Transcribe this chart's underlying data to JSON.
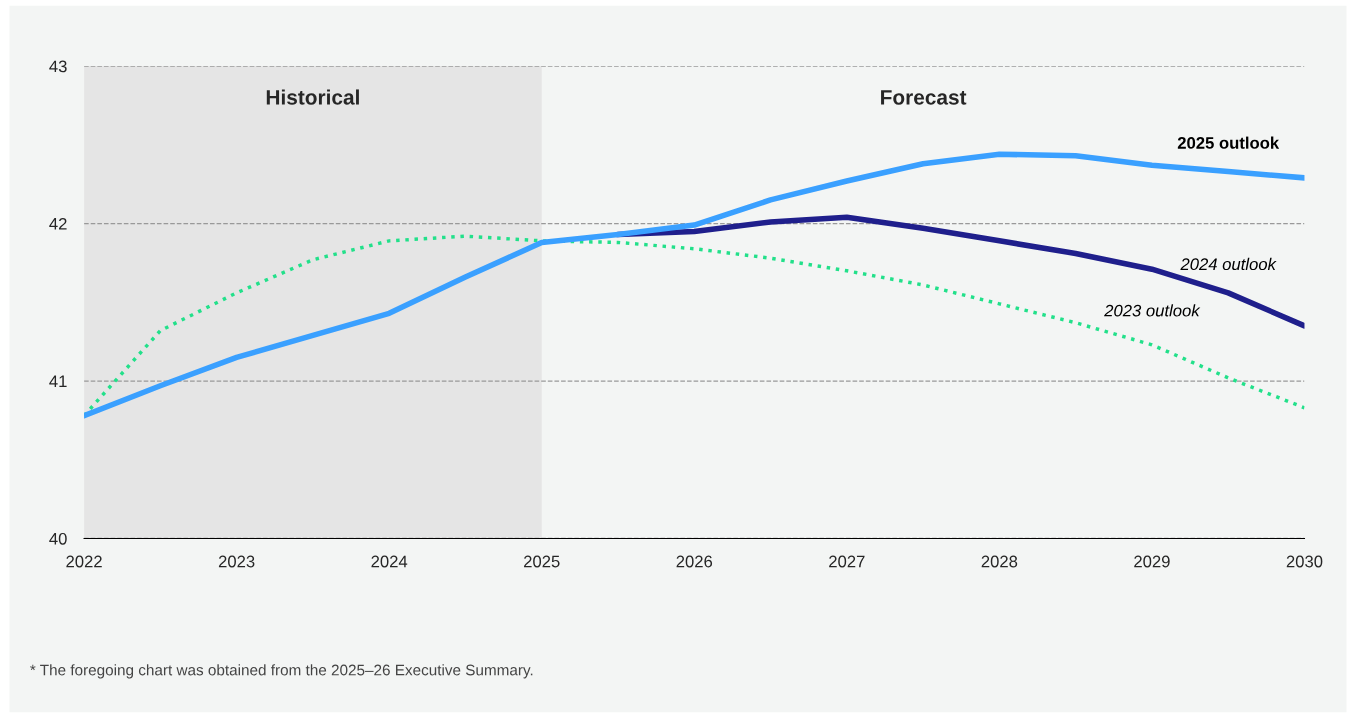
{
  "chart_data": {
    "type": "line",
    "x": [
      2022,
      2022.5,
      2023,
      2023.5,
      2024,
      2024.5,
      2025,
      2025.5,
      2026,
      2026.5,
      2027,
      2027.5,
      2028,
      2028.5,
      2029,
      2029.5,
      2030
    ],
    "series": [
      {
        "name": "2025 outlook",
        "color": "#3aa0ff",
        "line_style": "solid",
        "values": [
          40.78,
          40.97,
          41.15,
          41.29,
          41.43,
          41.66,
          41.88,
          41.93,
          41.99,
          42.15,
          42.27,
          42.38,
          42.44,
          42.43,
          42.37,
          42.33,
          42.29
        ]
      },
      {
        "name": "2024 outlook",
        "color": "#1f1f8c",
        "line_style": "solid",
        "values": [
          null,
          null,
          null,
          null,
          null,
          null,
          null,
          41.93,
          41.95,
          42.01,
          42.04,
          41.97,
          41.89,
          41.81,
          41.71,
          41.56,
          41.35
        ]
      },
      {
        "name": "2023 outlook",
        "color": "#22e08a",
        "line_style": "dotted",
        "values": [
          40.78,
          41.32,
          41.56,
          41.77,
          41.89,
          41.92,
          41.89,
          41.88,
          41.84,
          41.78,
          41.7,
          41.61,
          41.49,
          41.37,
          41.23,
          41.02,
          40.83
        ]
      }
    ],
    "xlim": [
      2022,
      2030
    ],
    "xticks": [
      2022,
      2023,
      2024,
      2025,
      2026,
      2027,
      2028,
      2029,
      2030
    ],
    "ylim": [
      40,
      43
    ],
    "yticks": [
      40,
      41,
      42,
      43
    ],
    "grid": "y",
    "legend": false,
    "bands": [
      {
        "axis": "x",
        "from": 2022,
        "to": 2025,
        "label": "Historical",
        "color": "#e5e5e5"
      }
    ],
    "annotations": [
      "Forecast",
      "* The foregoing chart was obtained from the 2025–26 Executive Summary."
    ]
  }
}
